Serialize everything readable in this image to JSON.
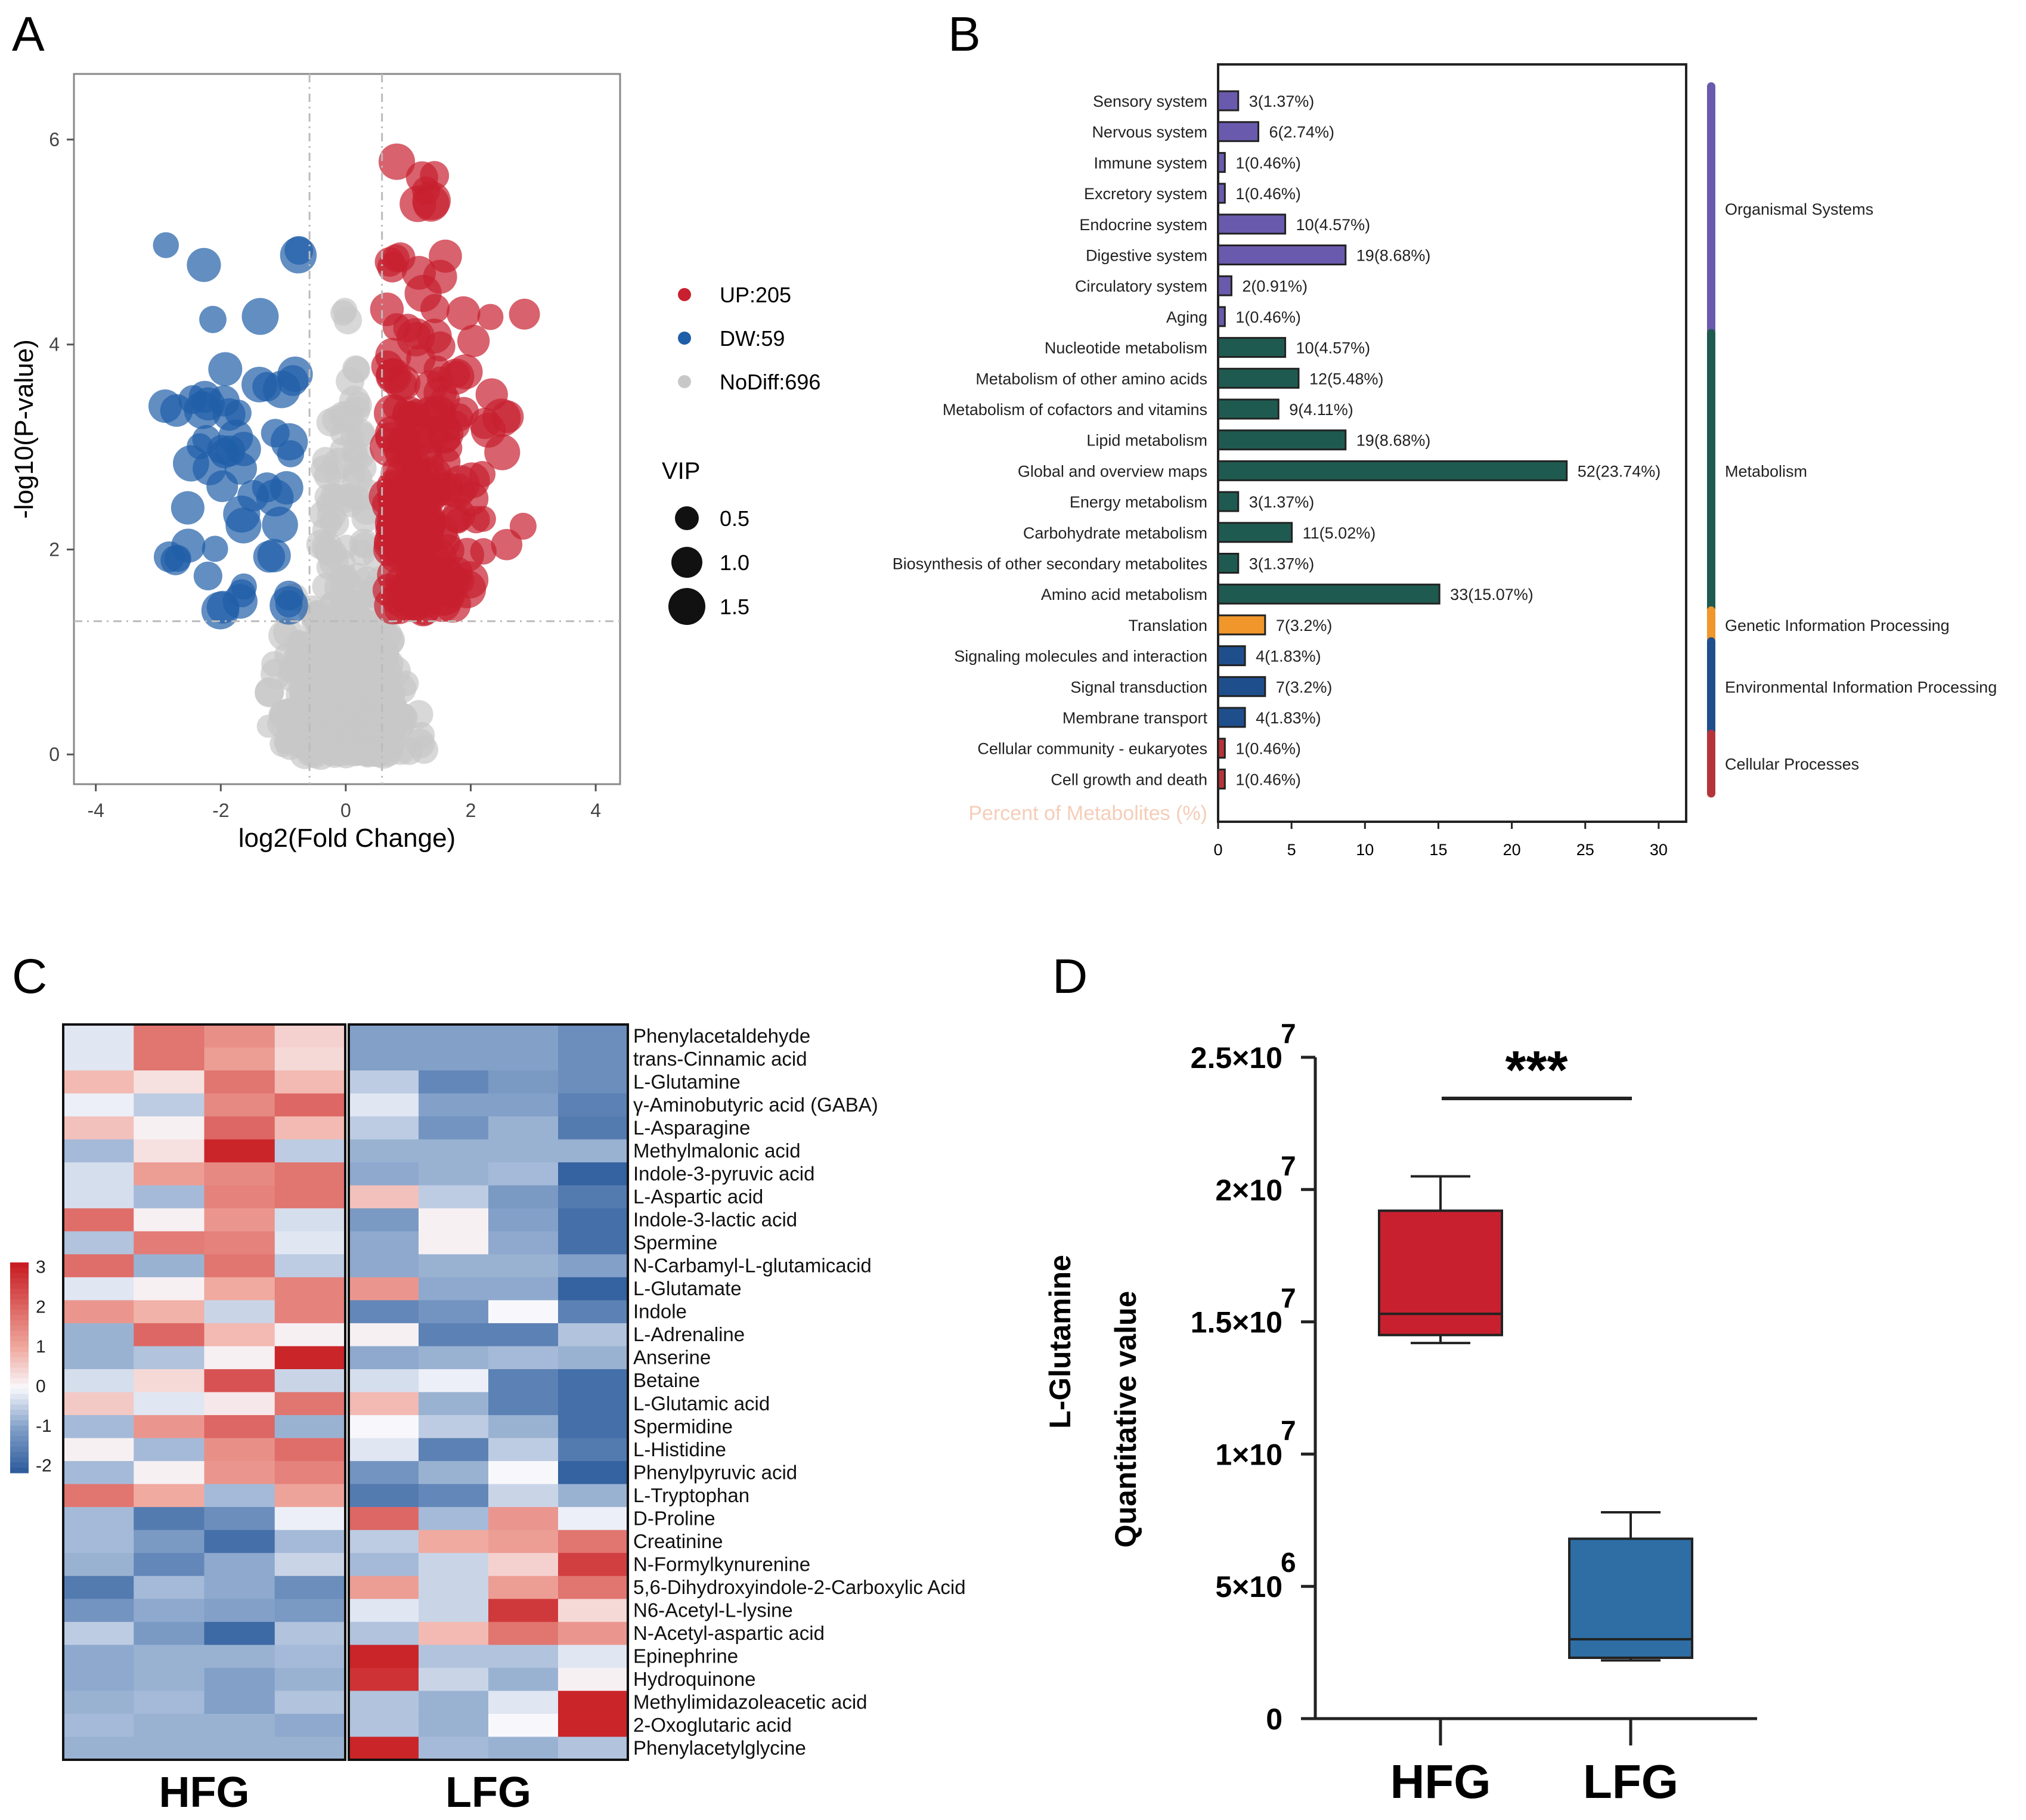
{
  "panel_letters": [
    "A",
    "B",
    "C",
    "D"
  ],
  "chart_data": [
    {
      "type": "scatter",
      "panel": "A",
      "title": "",
      "xlabel": "log2(Fold Change)",
      "ylabel": "-log10(P-value)",
      "xlim": [
        -4.35,
        4.39
      ],
      "ylim": [
        -0.29,
        6.64
      ],
      "xticks": [
        "-4",
        "-2",
        "0",
        "2",
        "4"
      ],
      "yticks": [
        "0",
        "2",
        "4",
        "6"
      ],
      "thresholds": {
        "log2fc": 0.58,
        "neglog10p": 1.3
      },
      "legend": [
        {
          "label": "UP:205",
          "color": "#c8202f",
          "count": 205
        },
        {
          "label": "DW:59",
          "color": "#1f5ea8",
          "count": 59
        },
        {
          "label": "NoDiff:696",
          "color": "#c8c8c8",
          "count": 696
        }
      ],
      "size_legend": {
        "title": "VIP",
        "labels": [
          "0.5",
          "1.0",
          "1.5"
        ],
        "values": [
          0.5,
          1.0,
          1.5
        ]
      }
    },
    {
      "type": "bar",
      "panel": "B",
      "xlabel": "Percent of Metabolites (%)",
      "xlim": [
        0,
        32
      ],
      "xticks": [
        "0",
        "5",
        "10",
        "15",
        "20",
        "25",
        "30"
      ],
      "categories": [
        "Sensory system",
        "Nervous system",
        "Immune system",
        "Excretory system",
        "Endocrine system",
        "Digestive system",
        "Circulatory system",
        "Aging",
        "Nucleotide metabolism",
        "Metabolism of other amino acids",
        "Metabolism of cofactors and vitamins",
        "Lipid metabolism",
        "Global and overview maps",
        "Energy metabolism",
        "Carbohydrate metabolism",
        "Biosynthesis of other secondary metabolites",
        "Amino acid metabolism",
        "Translation",
        "Signaling molecules and interaction",
        "Signal transduction",
        "Membrane transport",
        "Cellular community - eukaryotes",
        "Cell growth and death"
      ],
      "values": [
        1.37,
        2.74,
        0.46,
        0.46,
        4.57,
        8.68,
        0.91,
        0.46,
        4.57,
        5.48,
        4.11,
        8.68,
        23.74,
        1.37,
        5.02,
        1.37,
        15.07,
        3.2,
        1.83,
        3.2,
        1.83,
        0.46,
        0.46
      ],
      "labels": [
        "3(1.37%)",
        "6(2.74%)",
        "1(0.46%)",
        "1(0.46%)",
        "10(4.57%)",
        "19(8.68%)",
        "2(0.91%)",
        "1(0.46%)",
        "10(4.57%)",
        "12(5.48%)",
        "9(4.11%)",
        "19(8.68%)",
        "52(23.74%)",
        "3(1.37%)",
        "11(5.02%)",
        "3(1.37%)",
        "33(15.07%)",
        "7(3.2%)",
        "4(1.83%)",
        "7(3.2%)",
        "4(1.83%)",
        "1(0.46%)",
        "1(0.46%)"
      ],
      "groups": [
        {
          "name": "Organismal Systems",
          "start": 0,
          "end": 7,
          "color": "#6a5aad"
        },
        {
          "name": "Metabolism",
          "start": 8,
          "end": 16,
          "color": "#1f5a50"
        },
        {
          "name": "Genetic Information Processing",
          "start": 17,
          "end": 17,
          "color": "#f0962a"
        },
        {
          "name": "Environmental Information Processing",
          "start": 18,
          "end": 20,
          "color": "#1f4e8c"
        },
        {
          "name": "Cellular Processes",
          "start": 21,
          "end": 22,
          "color": "#b5343a"
        }
      ]
    },
    {
      "type": "heatmap",
      "panel": "C",
      "groups": [
        "HFG",
        "LFG"
      ],
      "colorbar": {
        "ticks": [
          "3",
          "2",
          "1",
          "0",
          "-1",
          "-2"
        ],
        "range": [
          -2.2,
          3.1
        ]
      },
      "rows": [
        "Phenylacetaldehyde",
        "trans-Cinnamic acid",
        "L-Glutamine",
        "γ-Aminobutyric acid (GABA)",
        "L-Asparagine",
        "Methylmalonic acid",
        "Indole-3-pyruvic acid",
        "L-Aspartic acid",
        "Indole-3-lactic acid",
        "Spermine",
        "N-Carbamyl-L-glutamicacid",
        "L-Glutamate",
        "Indole",
        "L-Adrenaline",
        "Anserine",
        "Betaine",
        "L-Glutamic acid",
        "Spermidine",
        "L-Histidine",
        "Phenylpyruvic acid",
        "L-Tryptophan",
        "D-Proline",
        "Creatinine",
        "N-Formylkynurenine",
        "5,6-Dihydroxyindole-2-Carboxylic Acid",
        "N6-Acetyl-L-lysine",
        "N-Acetyl-aspartic acid",
        "Epinephrine",
        "Hydroquinone",
        "Methylimidazoleacetic acid",
        "2-Oxoglutaric acid",
        "Phenylacetylglycine"
      ],
      "values": [
        [
          -0.2,
          1.8,
          1.4,
          0.5,
          -1,
          -1,
          -1,
          -1.3
        ],
        [
          -0.2,
          1.8,
          1.2,
          0.4,
          -1,
          -1,
          -1,
          -1.3
        ],
        [
          0.8,
          0.3,
          1.8,
          0.8,
          -0.5,
          -1.4,
          -1.1,
          -1.3
        ],
        [
          -0.1,
          -0.5,
          1.5,
          2.0,
          -0.2,
          -1,
          -1,
          -1.5
        ],
        [
          0.7,
          0.1,
          2.0,
          0.8,
          -0.5,
          -1.2,
          -0.8,
          -1.6
        ],
        [
          -0.7,
          0.3,
          3.0,
          -0.5,
          -0.8,
          -0.8,
          -0.8,
          -0.8
        ],
        [
          -0.3,
          1.2,
          1.5,
          1.8,
          -0.9,
          -0.8,
          -0.7,
          -2.0
        ],
        [
          -0.3,
          -0.7,
          1.6,
          1.8,
          0.7,
          -0.5,
          -1.1,
          -1.6
        ],
        [
          1.9,
          0.1,
          1.3,
          -0.3,
          -1.1,
          0.1,
          -1,
          -1.8
        ],
        [
          -0.6,
          1.7,
          1.6,
          -0.2,
          -0.9,
          0.1,
          -0.9,
          -1.8
        ],
        [
          1.9,
          -0.8,
          1.8,
          -0.5,
          -0.9,
          -0.8,
          -0.8,
          -1.0
        ],
        [
          -0.2,
          0.1,
          1.0,
          1.6,
          1.3,
          -0.9,
          -0.9,
          -2.0
        ],
        [
          1.3,
          0.9,
          -0.4,
          1.6,
          -1.4,
          -1.2,
          0.0,
          -1.5
        ],
        [
          -0.8,
          2.0,
          0.8,
          0.1,
          0.1,
          -1.5,
          -1.5,
          -0.6
        ],
        [
          -0.8,
          -0.6,
          0.1,
          3.0,
          -0.9,
          -0.8,
          -0.7,
          -0.8
        ],
        [
          -0.3,
          0.4,
          2.3,
          -0.4,
          -0.3,
          -0.1,
          -1.5,
          -1.8
        ],
        [
          0.6,
          -0.2,
          0.2,
          1.8,
          0.8,
          -0.8,
          -1.5,
          -1.8
        ],
        [
          -0.7,
          1.3,
          2.0,
          -0.8,
          0.0,
          -0.5,
          -0.8,
          -1.8
        ],
        [
          0.1,
          -0.7,
          1.4,
          1.9,
          -0.2,
          -1.5,
          -0.5,
          -1.6
        ],
        [
          -0.7,
          0.1,
          1.3,
          1.6,
          -1.2,
          -0.8,
          0.0,
          -2.0
        ],
        [
          1.8,
          1.0,
          -0.7,
          1.1,
          -1.6,
          -1.4,
          -0.4,
          -0.8
        ],
        [
          -0.7,
          -1.6,
          -1.3,
          -0.1,
          2.0,
          -0.7,
          1.3,
          -0.1
        ],
        [
          -0.7,
          -1.1,
          -1.8,
          -0.7,
          -0.5,
          1.0,
          1.2,
          1.8
        ],
        [
          -0.8,
          -1.4,
          -0.9,
          -0.4,
          -0.7,
          -0.4,
          0.5,
          2.6
        ],
        [
          -1.6,
          -0.7,
          -0.9,
          -1.3,
          1.2,
          -0.4,
          1.2,
          1.8
        ],
        [
          -1.2,
          -0.9,
          -1.0,
          -1.1,
          -0.2,
          -0.4,
          2.7,
          0.4
        ],
        [
          -0.5,
          -1.1,
          -1.9,
          -0.6,
          -0.6,
          0.8,
          1.8,
          1.3
        ],
        [
          -0.9,
          -0.8,
          -0.8,
          -0.7,
          3.0,
          -0.6,
          -0.6,
          -0.2
        ],
        [
          -0.9,
          -0.8,
          -1.0,
          -0.8,
          2.8,
          -0.4,
          -0.8,
          0.1
        ],
        [
          -0.8,
          -0.7,
          -1.0,
          -0.6,
          -0.6,
          -0.8,
          -0.2,
          3.0
        ],
        [
          -0.7,
          -0.8,
          -0.8,
          -0.9,
          -0.6,
          -0.8,
          0.0,
          3.0
        ],
        [
          -0.8,
          -0.8,
          -0.8,
          -0.8,
          3.0,
          -0.7,
          -0.8,
          -0.6
        ]
      ]
    },
    {
      "type": "box",
      "panel": "D",
      "ylabel_line1": "L-Glutamine",
      "ylabel_line2": "Quantitative value",
      "ylim": [
        0,
        25000000
      ],
      "yticks": [
        {
          "value": 0,
          "base": "0",
          "exp": ""
        },
        {
          "value": 5000000,
          "base": "5×10",
          "exp": "6"
        },
        {
          "value": 10000000,
          "base": "1×10",
          "exp": "7"
        },
        {
          "value": 15000000,
          "base": "1.5×10",
          "exp": "7"
        },
        {
          "value": 20000000,
          "base": "2×10",
          "exp": "7"
        },
        {
          "value": 25000000,
          "base": "2.5×10",
          "exp": "7"
        }
      ],
      "significance": "***",
      "series": [
        {
          "name": "HFG",
          "color": "#c8202f",
          "min": 14200000,
          "q1": 14500000,
          "median": 15300000,
          "q3": 19200000,
          "max": 20500000
        },
        {
          "name": "LFG",
          "color": "#2e6ea5",
          "min": 2200000,
          "q1": 2300000,
          "median": 3000000,
          "q3": 6800000,
          "max": 7800000
        }
      ]
    }
  ]
}
